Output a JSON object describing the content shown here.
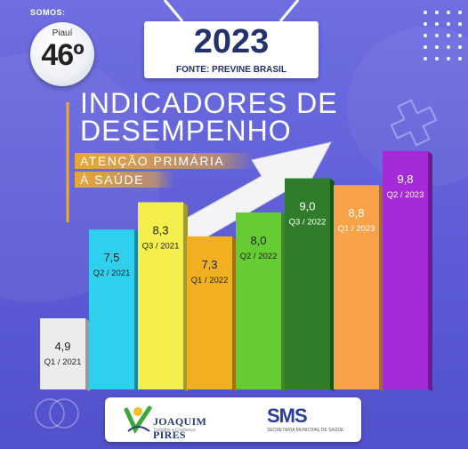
{
  "header": {
    "somos_label": "SOMOS:",
    "rank_state": "Piauí",
    "rank_value": "46º",
    "year": "2023",
    "fonte": "FONTE: PREVINE BRASIL"
  },
  "title_lines": [
    "INDICADORES DE",
    "DESEMPENHO"
  ],
  "subtitle_lines": [
    "ATENÇÃO PRIMÁRIA",
    "À SAÚDE"
  ],
  "footer": {
    "left_logo_text": "JOAQUIM PIRES",
    "left_logo_sub": "Trabalho e Confiança",
    "right_logo_text": "SMS",
    "right_logo_sub": "SECRETARIA MUNICIPAL DE SAÚDE"
  },
  "colors": {
    "background": "#5f5ed8",
    "year_text": "#23326e",
    "subtitle_band": "#f0aa28"
  },
  "chart_data": {
    "type": "bar",
    "categories": [
      "Q1 / 2021",
      "Q2 / 2021",
      "Q3 / 2021",
      "Q1 / 2022",
      "Q2 / 2022",
      "Q3 / 2022",
      "Q1 / 2023",
      "Q2 / 2023"
    ],
    "values": [
      4.9,
      7.5,
      8.3,
      7.3,
      8.0,
      9.0,
      8.8,
      9.8
    ],
    "value_labels": [
      "4,9",
      "7,5",
      "8,3",
      "7,3",
      "8,0",
      "9,0",
      "8,8",
      "9,8"
    ],
    "bar_colors": [
      "#ececec",
      "#2fd0ee",
      "#f5ef4e",
      "#f0b020",
      "#66cc33",
      "#2f7d2a",
      "#f9a24a",
      "#a52ad8"
    ],
    "label_colors": [
      "#222222",
      "#222222",
      "#222222",
      "#222222",
      "#222222",
      "#ffffff",
      "#ffffff",
      "#ffffff"
    ],
    "trend": "upward arrow",
    "ylim": [
      0,
      10
    ],
    "grid": false,
    "legend": "none"
  }
}
